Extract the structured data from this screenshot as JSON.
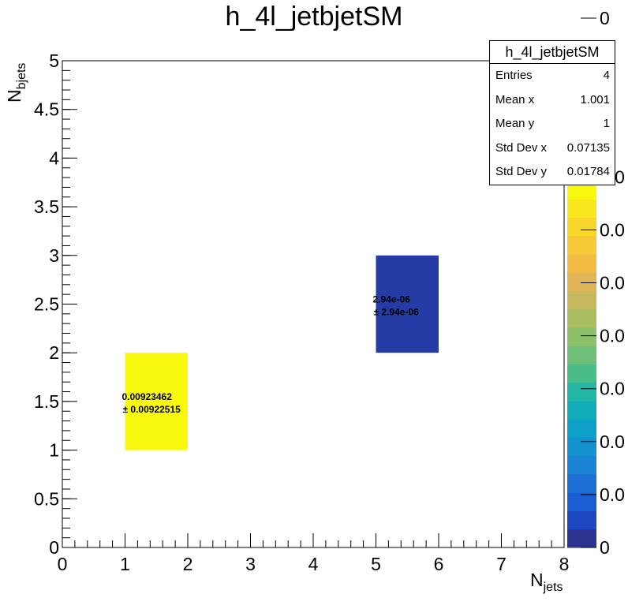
{
  "chart_data": {
    "type": "heatmap",
    "title": "h_4l_jetbjetSM",
    "xlabel": "N",
    "xlabel_sub": "jets",
    "ylabel": "N",
    "ylabel_sub": "bjets",
    "xlim": [
      0,
      8
    ],
    "ylim": [
      0,
      5
    ],
    "x_ticks": [
      "0",
      "1",
      "2",
      "3",
      "4",
      "5",
      "6",
      "7",
      "8"
    ],
    "y_ticks": [
      "0",
      "0.5",
      "1",
      "1.5",
      "2",
      "2.5",
      "3",
      "3.5",
      "4",
      "4.5",
      "5"
    ],
    "grid": false,
    "cells": [
      {
        "x0": 1,
        "x1": 2,
        "y0": 1,
        "y1": 2,
        "value": 0.00923462,
        "label": "0.00923462",
        "error_label": "± 0.00922515",
        "color": "#f9f90f"
      },
      {
        "x0": 5,
        "x1": 6,
        "y0": 2,
        "y1": 3,
        "value": 2.94e-06,
        "label": "2.94e-06",
        "error_label": "± 2.94e-06",
        "color": "#253ca6"
      }
    ],
    "colorbar": {
      "tick_labels": [
        "0",
        "0.0",
        "0.0",
        "0.0",
        "0.0",
        "0.0",
        "0.0",
        "0.0",
        "0",
        "0",
        "0"
      ],
      "colors": [
        "#2c3390",
        "#1b48bf",
        "#1c5dd4",
        "#1e6fd6",
        "#1a82d4",
        "#1492d0",
        "#0fa0c7",
        "#12acb8",
        "#22b6a4",
        "#4abc8a",
        "#6fbf78",
        "#8ebf6b",
        "#aabd62",
        "#c7b95d",
        "#e2b556",
        "#f2bb44",
        "#f5c937",
        "#f7d82a",
        "#f8e71e",
        "#f9f90f"
      ]
    },
    "stats": {
      "name": "h_4l_jetbjetSM",
      "rows": [
        {
          "key": "Entries",
          "value": "4"
        },
        {
          "key": "Mean x",
          "value": "1.001"
        },
        {
          "key": "Mean y",
          "value": "1"
        },
        {
          "key": "Std Dev x",
          "value": "0.07135"
        },
        {
          "key": "Std Dev y",
          "value": "0.01784"
        }
      ]
    }
  }
}
